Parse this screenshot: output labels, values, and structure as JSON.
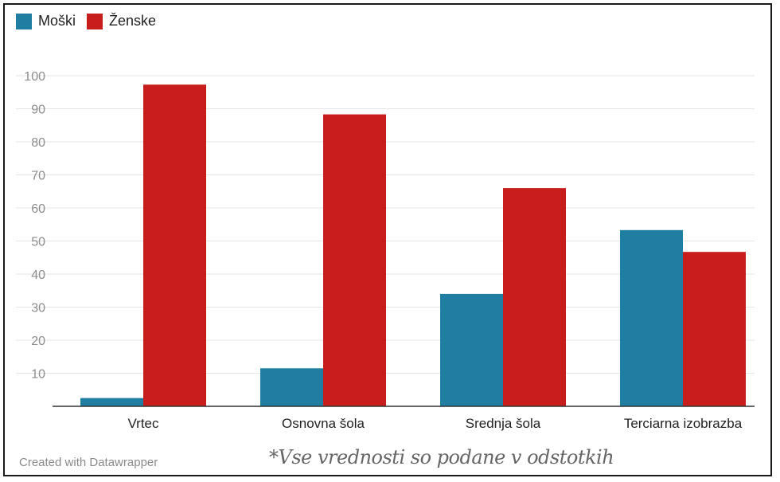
{
  "chart_data": {
    "type": "bar",
    "categories": [
      "Vrtec",
      "Osnovna šola",
      "Srednja šola",
      "Terciarna izobrazba"
    ],
    "series": [
      {
        "name": "Moški",
        "values": [
          2.5,
          11.5,
          34,
          53.3
        ],
        "color": "#1f7ea1"
      },
      {
        "name": "Ženske",
        "values": [
          97.3,
          88.3,
          66,
          46.7
        ],
        "color": "#c71e1d"
      }
    ],
    "yticks": [
      10,
      20,
      30,
      40,
      50,
      60,
      70,
      80,
      90,
      100
    ],
    "ylim": [
      0,
      100
    ],
    "grid": true,
    "legend": "top-left"
  },
  "credit": "Created with Datawrapper",
  "footnote": "*Vse vrednosti so podane v odstotkih"
}
